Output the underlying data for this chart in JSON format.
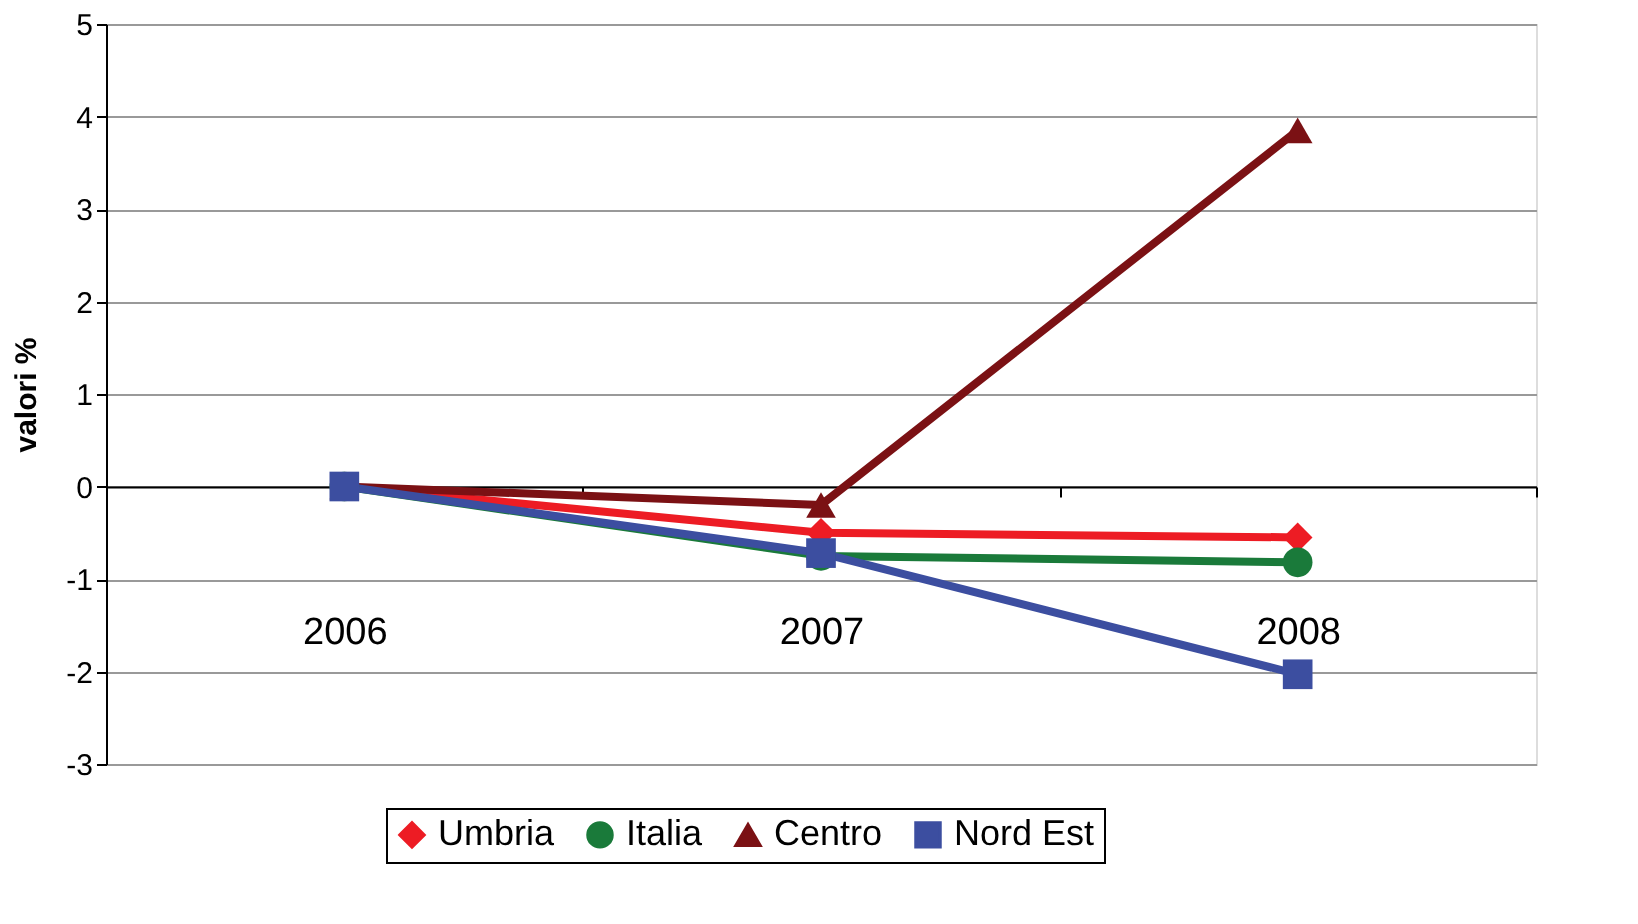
{
  "chart_data": {
    "type": "line",
    "ylabel": "valori %",
    "categories": [
      "2006",
      "2007",
      "2008"
    ],
    "series": [
      {
        "name": "Umbria",
        "color": "#ed1c24",
        "marker": "diamond",
        "values": [
          0,
          -0.5,
          -0.55
        ]
      },
      {
        "name": "Italia",
        "color": "#1a7a3a",
        "marker": "circle",
        "values": [
          0,
          -0.75,
          -0.82
        ]
      },
      {
        "name": "Centro",
        "color": "#7b1114",
        "marker": "triangle",
        "values": [
          0,
          -0.2,
          3.85
        ]
      },
      {
        "name": "Nord Est",
        "color": "#3c4ea0",
        "marker": "square",
        "values": [
          0,
          -0.72,
          -2.03
        ]
      }
    ],
    "ylim": [
      -3,
      5
    ],
    "yticks": [
      -3,
      -2,
      -1,
      0,
      1,
      2,
      3,
      4,
      5
    ],
    "grid": "y",
    "legend": "bottom",
    "line_style": "solid"
  }
}
